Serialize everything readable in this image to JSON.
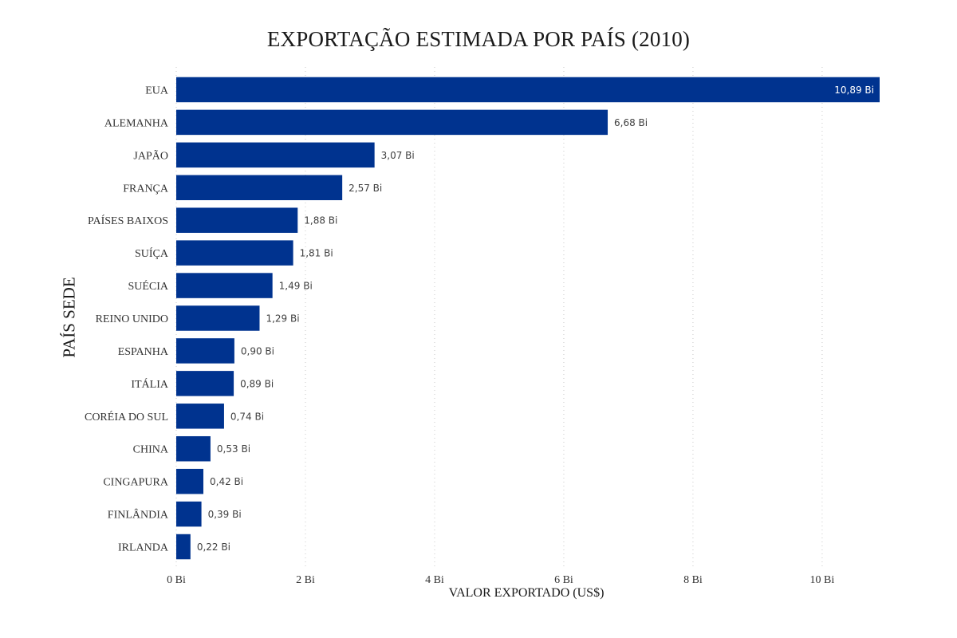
{
  "chart_data": {
    "type": "bar",
    "orientation": "horizontal",
    "title": "EXPORTAÇÃO ESTIMADA POR PAÍS (2010)",
    "xlabel": "VALOR EXPORTADO (US$)",
    "ylabel": "PAÍS SEDE",
    "categories": [
      "EUA",
      "ALEMANHA",
      "JAPÃO",
      "FRANÇA",
      "PAÍSES BAIXOS",
      "SUÍÇA",
      "SUÉCIA",
      "REINO UNIDO",
      "ESPANHA",
      "ITÁLIA",
      "CORÉIA DO SUL",
      "CHINA",
      "CINGAPURA",
      "FINLÂNDIA",
      "IRLANDA"
    ],
    "values": [
      10.89,
      6.68,
      3.07,
      2.57,
      1.88,
      1.81,
      1.49,
      1.29,
      0.9,
      0.89,
      0.74,
      0.53,
      0.42,
      0.39,
      0.22
    ],
    "data_labels": [
      "10,89 Bi",
      "6,68 Bi",
      "3,07 Bi",
      "2,57 Bi",
      "1,88 Bi",
      "1,81 Bi",
      "1,49 Bi",
      "1,29 Bi",
      "0,90 Bi",
      "0,89 Bi",
      "0,74 Bi",
      "0,53 Bi",
      "0,42 Bi",
      "0,39 Bi",
      "0,22 Bi"
    ],
    "x_ticks": [
      0,
      2,
      4,
      6,
      8,
      10
    ],
    "x_tick_labels": [
      "0 Bi",
      "2 Bi",
      "4 Bi",
      "6 Bi",
      "8 Bi",
      "10 Bi"
    ],
    "xlim": [
      0,
      10.89
    ],
    "grid": "vertical dotted",
    "legend": "none",
    "bar_color": "#00338f",
    "inside_label_color": "#ffffff"
  }
}
